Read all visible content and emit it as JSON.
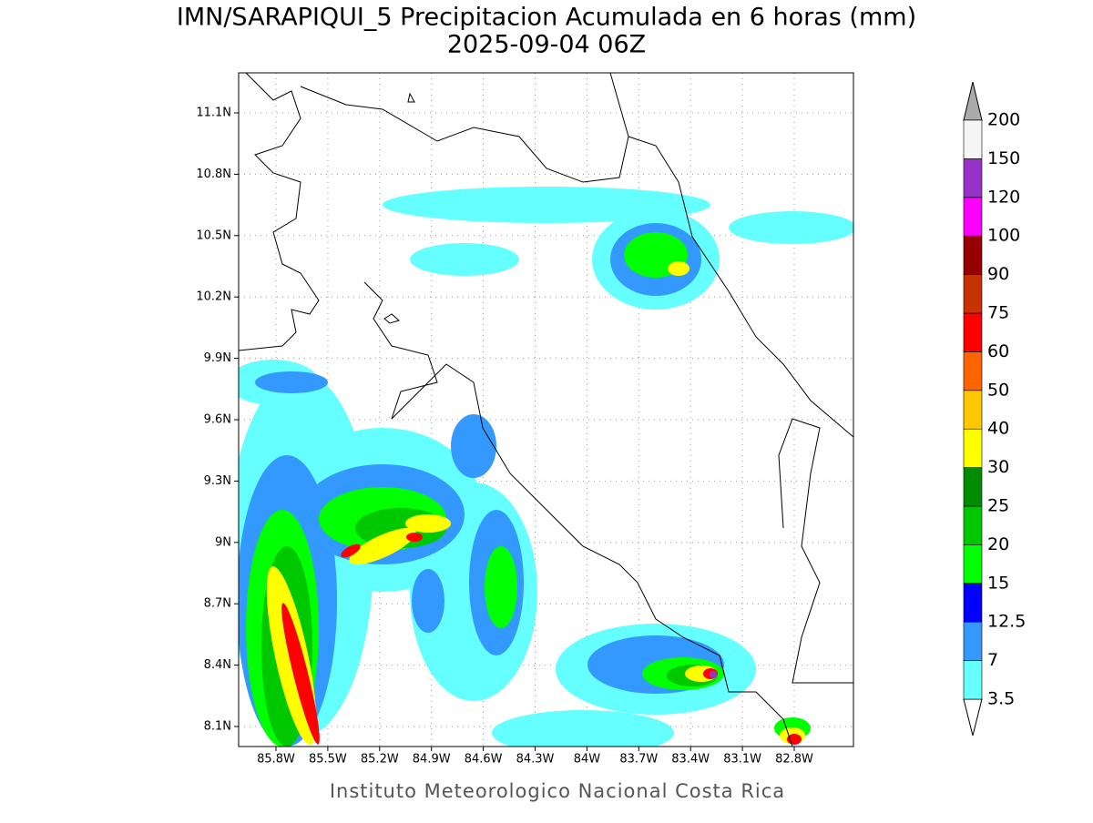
{
  "title": "IMN/SARAPIQUI_5 Precipitacion Acumulada en 6 horas (mm)",
  "subtitle": "2025-09-04 06Z",
  "footer": "Instituto Meteorologico Nacional Costa Rica",
  "lon_ticks": [
    "85.8W",
    "85.5W",
    "85.2W",
    "84.9W",
    "84.6W",
    "84.3W",
    "84W",
    "83.7W",
    "83.4W",
    "83.1W",
    "82.8W"
  ],
  "lat_ticks": [
    "11.1N",
    "10.8N",
    "10.5N",
    "10.2N",
    "9.9N",
    "9.6N",
    "9.3N",
    "9N",
    "8.7N",
    "8.4N",
    "8.1N"
  ],
  "colorbar": {
    "levels": [
      3.5,
      7,
      12.5,
      15,
      20,
      25,
      30,
      40,
      50,
      60,
      75,
      90,
      100,
      120,
      150,
      200
    ],
    "colors": [
      "#66ffff",
      "#3399ff",
      "#0000ff",
      "#00ff00",
      "#00c800",
      "#008c00",
      "#ffff00",
      "#ffc800",
      "#ff6400",
      "#ff0000",
      "#c83200",
      "#960000",
      "#ff00ff",
      "#9632c8",
      "#f5f5f5"
    ],
    "under_color": "#ffffff",
    "over_color": "#aaaaaa"
  }
}
